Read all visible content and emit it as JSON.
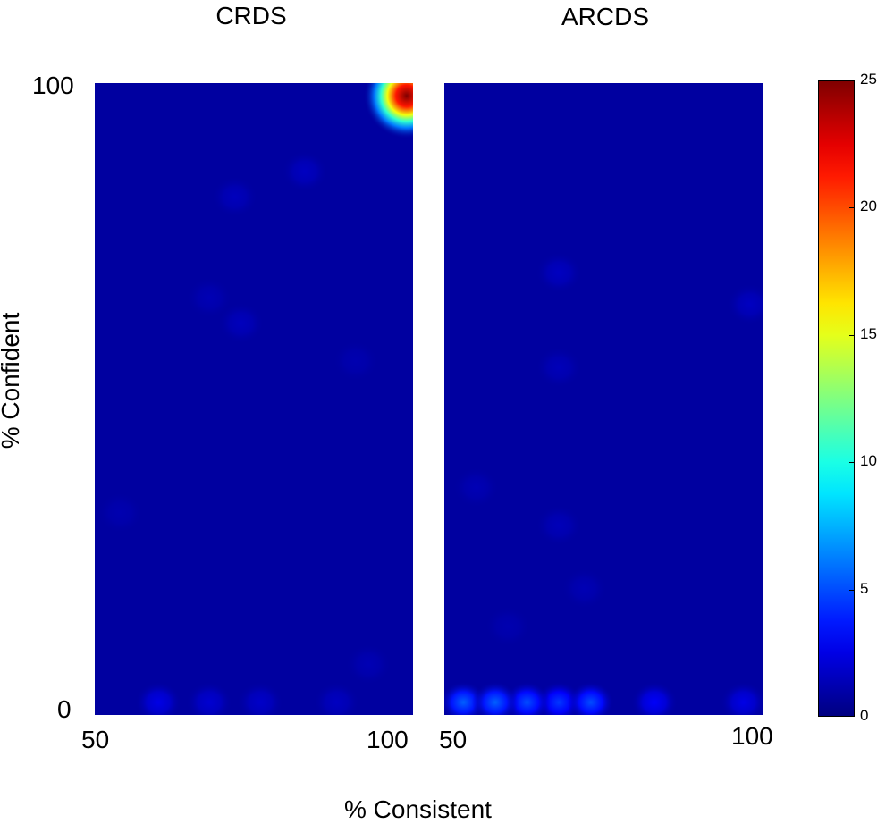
{
  "chart_data": [
    {
      "type": "heatmap",
      "title": "CRDS",
      "xlim": [
        50,
        100
      ],
      "ylim": [
        0,
        100
      ],
      "x_ticks": [
        "50",
        "100"
      ],
      "y_ticks": [
        "0",
        "100"
      ],
      "background_value": 0.8,
      "hotspots": [
        {
          "x": 99,
          "y": 98,
          "value": 25
        },
        {
          "x": 60,
          "y": 2,
          "value": 2.5
        },
        {
          "x": 68,
          "y": 2,
          "value": 2.0
        },
        {
          "x": 76,
          "y": 2,
          "value": 1.8
        },
        {
          "x": 88,
          "y": 2,
          "value": 1.6
        },
        {
          "x": 83,
          "y": 86,
          "value": 1.6
        },
        {
          "x": 72,
          "y": 82,
          "value": 1.5
        },
        {
          "x": 73,
          "y": 62,
          "value": 1.5
        },
        {
          "x": 68,
          "y": 66,
          "value": 1.3
        },
        {
          "x": 91,
          "y": 56,
          "value": 1.2
        },
        {
          "x": 54,
          "y": 32,
          "value": 1.2
        },
        {
          "x": 93,
          "y": 8,
          "value": 1.3
        }
      ]
    },
    {
      "type": "heatmap",
      "title": "ARCDS",
      "xlim": [
        50,
        100
      ],
      "ylim": [
        0,
        100
      ],
      "x_ticks": [
        "50",
        "100"
      ],
      "y_ticks": [
        "0",
        "100"
      ],
      "background_value": 0.8,
      "hotspots": [
        {
          "x": 53,
          "y": 2,
          "value": 5.5
        },
        {
          "x": 58,
          "y": 2,
          "value": 5.5
        },
        {
          "x": 63,
          "y": 2,
          "value": 5.0
        },
        {
          "x": 68,
          "y": 2,
          "value": 4.5
        },
        {
          "x": 73,
          "y": 2,
          "value": 5.0
        },
        {
          "x": 83,
          "y": 2,
          "value": 3.0
        },
        {
          "x": 97,
          "y": 2,
          "value": 2.5
        },
        {
          "x": 68,
          "y": 70,
          "value": 1.6
        },
        {
          "x": 98,
          "y": 65,
          "value": 1.6
        },
        {
          "x": 68,
          "y": 55,
          "value": 1.4
        },
        {
          "x": 55,
          "y": 36,
          "value": 1.3
        },
        {
          "x": 68,
          "y": 30,
          "value": 1.4
        },
        {
          "x": 72,
          "y": 20,
          "value": 1.3
        },
        {
          "x": 60,
          "y": 14,
          "value": 1.2
        }
      ]
    }
  ],
  "xlabel": "% Consistent",
  "ylabel": "% Confident",
  "colorbar": {
    "min": 0,
    "max": 25,
    "ticks": [
      "0",
      "5",
      "10",
      "15",
      "20",
      "25"
    ],
    "colormap": "jet"
  }
}
